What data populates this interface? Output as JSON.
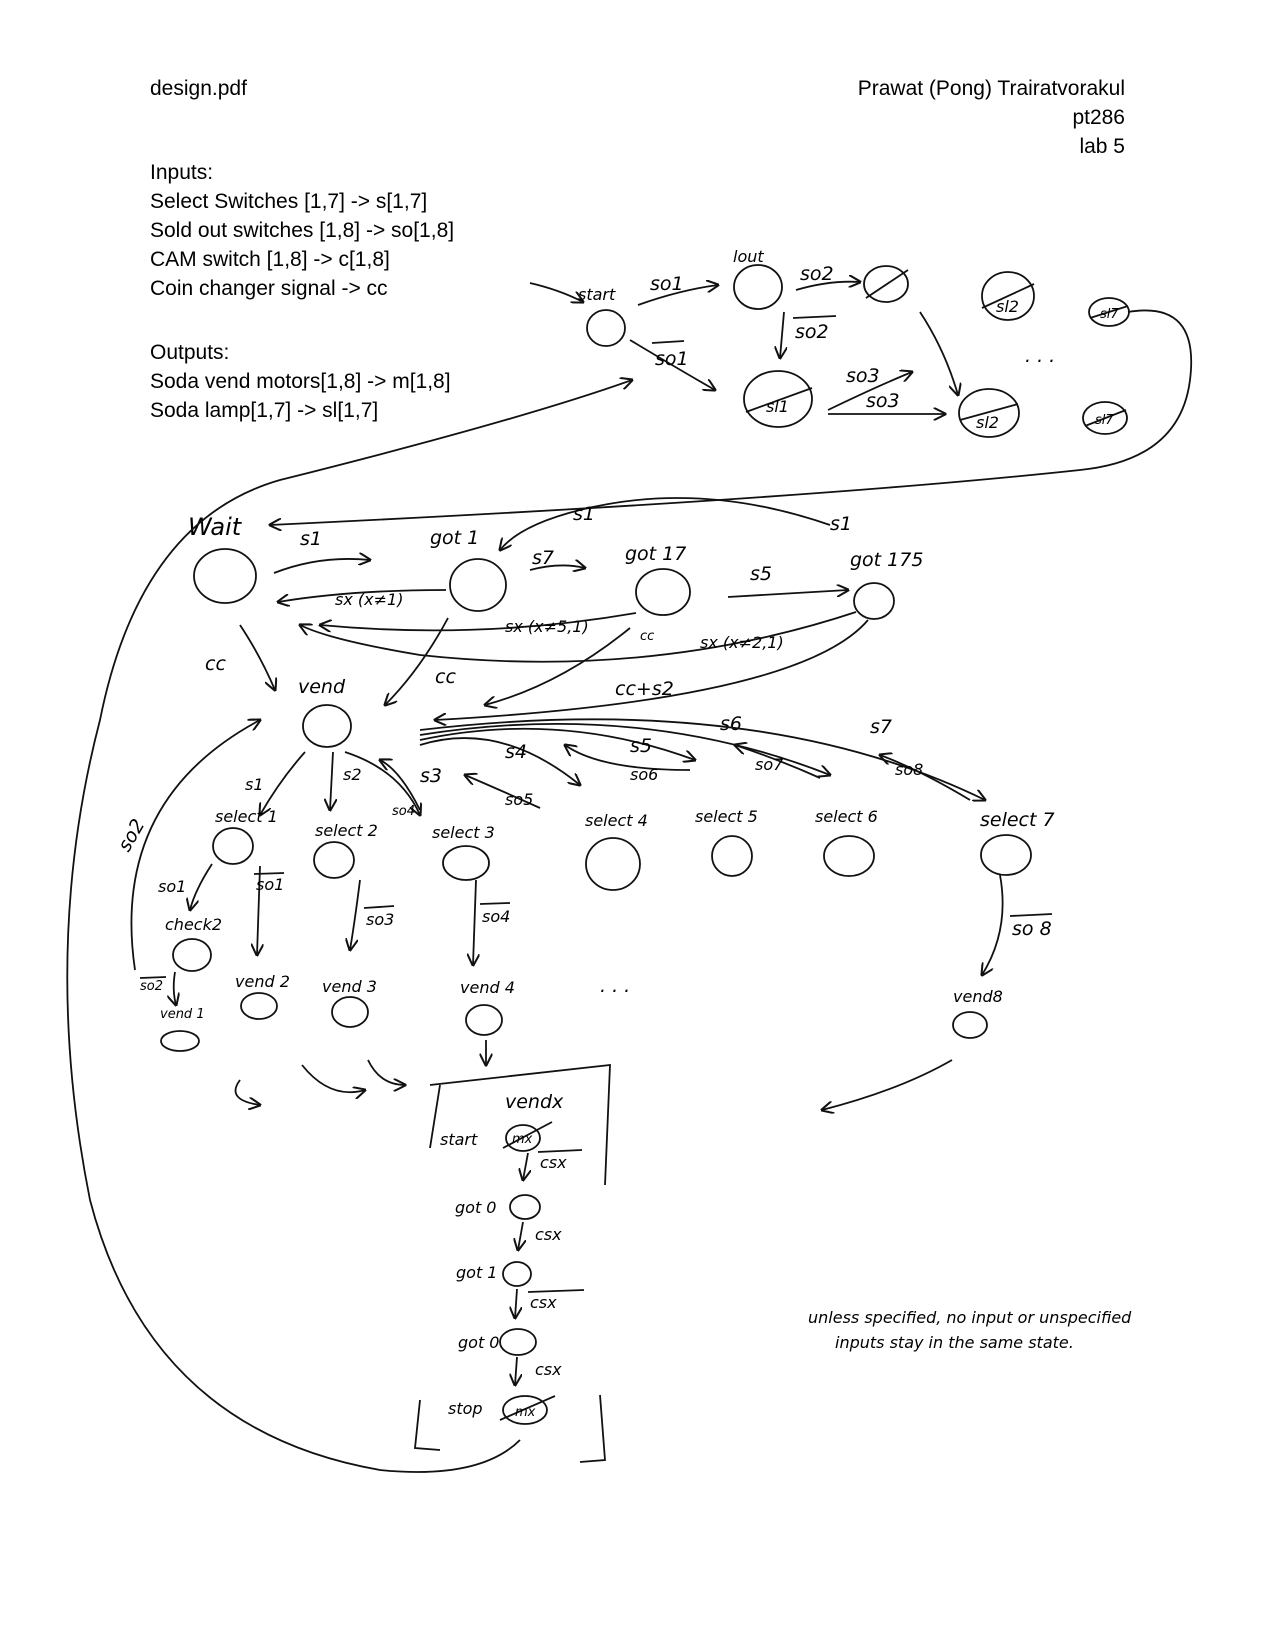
{
  "header": {
    "filename": "design.pdf",
    "author": "Prawat (Pong) Trairatvorakul",
    "netid": "pt286",
    "lab": "lab 5"
  },
  "inputs": {
    "heading": "Inputs:",
    "lines": [
      "Select Switches [1,7] -> s[1,7]",
      "Sold out switches [1,8] -> so[1,8]",
      "CAM switch [1,8] -> c[1,8]",
      "Coin changer signal -> cc"
    ]
  },
  "outputs": {
    "heading": "Outputs:",
    "lines": [
      "Soda vend motors[1,8] -> m[1,8]",
      "Soda lamp[1,7] -> sl[1,7]"
    ]
  },
  "diagram": {
    "states": {
      "start": "start",
      "lout": "lout",
      "sl1": "sl1",
      "sl2": "sl2",
      "sl7": "sl7",
      "wait": "Wait",
      "got1": "got 1",
      "got17": "got 17",
      "got175": "got 175",
      "vend": "vend",
      "select1": "select 1",
      "select2": "select 2",
      "select3": "select 3",
      "select4": "select 4",
      "select5": "select 5",
      "select6": "select 6",
      "select7": "select 7",
      "check2": "check2",
      "vend1": "vend 1",
      "vend2": "vend 2",
      "vend3": "vend 3",
      "vend4": "vend 4",
      "vend8": "vend8",
      "vendx": "vendx",
      "vendx_start": "start",
      "mx": "mx",
      "got0a": "got 0",
      "got1b": "got 1",
      "got0b": "got 0",
      "stop": "stop"
    },
    "transitions": {
      "so1": "so1",
      "so1_bar": "so1",
      "so2": "so2",
      "so2_bar": "so2",
      "so3": "so3",
      "so3_bar": "so3",
      "s1": "s1",
      "s7": "s7",
      "s5": "s5",
      "sx_not1": "sx (x≠1)",
      "sx_not51": "sx (x≠5,1)",
      "sx_not21": "sx (x≠2,1)",
      "cc": "cc",
      "cc_plus_s2": "cc+s2",
      "s2": "s2",
      "s3": "s3",
      "s4": "s4",
      "s5b": "s5",
      "s6": "s6",
      "s7b": "s7",
      "so4": "so4",
      "so5": "so5",
      "so6": "so6",
      "so7": "so7",
      "so8": "so8",
      "so1_bar2": "so1",
      "so2_bar2": "so2",
      "so3_bar2": "so3",
      "so4_bar": "so4",
      "so8_bar": "so 8",
      "csx_bar1": "csx",
      "csx": "csx",
      "csx_bar2": "csx",
      "csx2": "csx"
    },
    "ellipsis": ". . .",
    "note": {
      "line1": "unless specified, no input or unspecified",
      "line2": "inputs stay in the same state."
    }
  }
}
